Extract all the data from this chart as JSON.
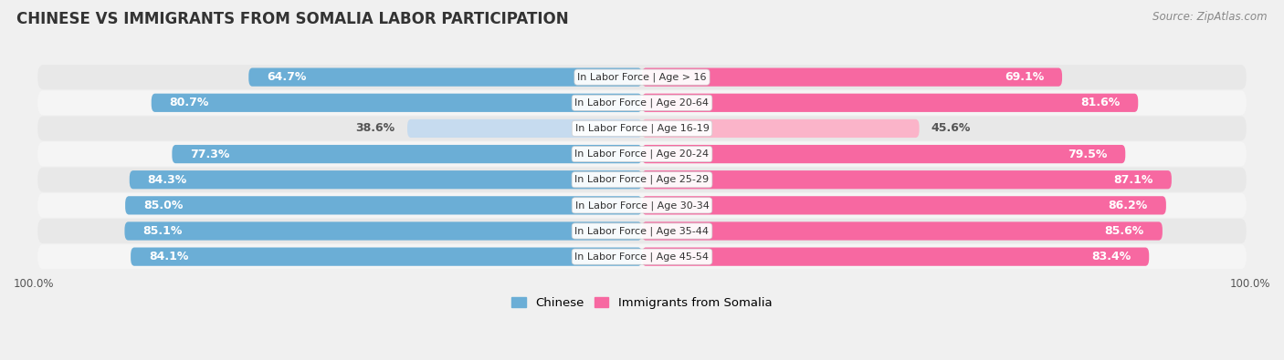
{
  "title": "CHINESE VS IMMIGRANTS FROM SOMALIA LABOR PARTICIPATION",
  "source": "Source: ZipAtlas.com",
  "categories": [
    "In Labor Force | Age > 16",
    "In Labor Force | Age 20-64",
    "In Labor Force | Age 16-19",
    "In Labor Force | Age 20-24",
    "In Labor Force | Age 25-29",
    "In Labor Force | Age 30-34",
    "In Labor Force | Age 35-44",
    "In Labor Force | Age 45-54"
  ],
  "chinese_values": [
    64.7,
    80.7,
    38.6,
    77.3,
    84.3,
    85.0,
    85.1,
    84.1
  ],
  "somalia_values": [
    69.1,
    81.6,
    45.6,
    79.5,
    87.1,
    86.2,
    85.6,
    83.4
  ],
  "chinese_color": "#6baed6",
  "chinese_color_light": "#c6dbef",
  "somalia_color": "#f768a1",
  "somalia_color_light": "#fbb4c9",
  "bar_height": 0.72,
  "bg_color": "#f0f0f0",
  "row_bg_color": "#e8e8e8",
  "row_alt_bg_color": "#f5f5f5",
  "max_value": 100.0,
  "label_fontsize": 9.0,
  "cat_fontsize": 8.0,
  "title_fontsize": 12,
  "source_fontsize": 8.5,
  "legend_fontsize": 9.5,
  "tick_fontsize": 8.5
}
